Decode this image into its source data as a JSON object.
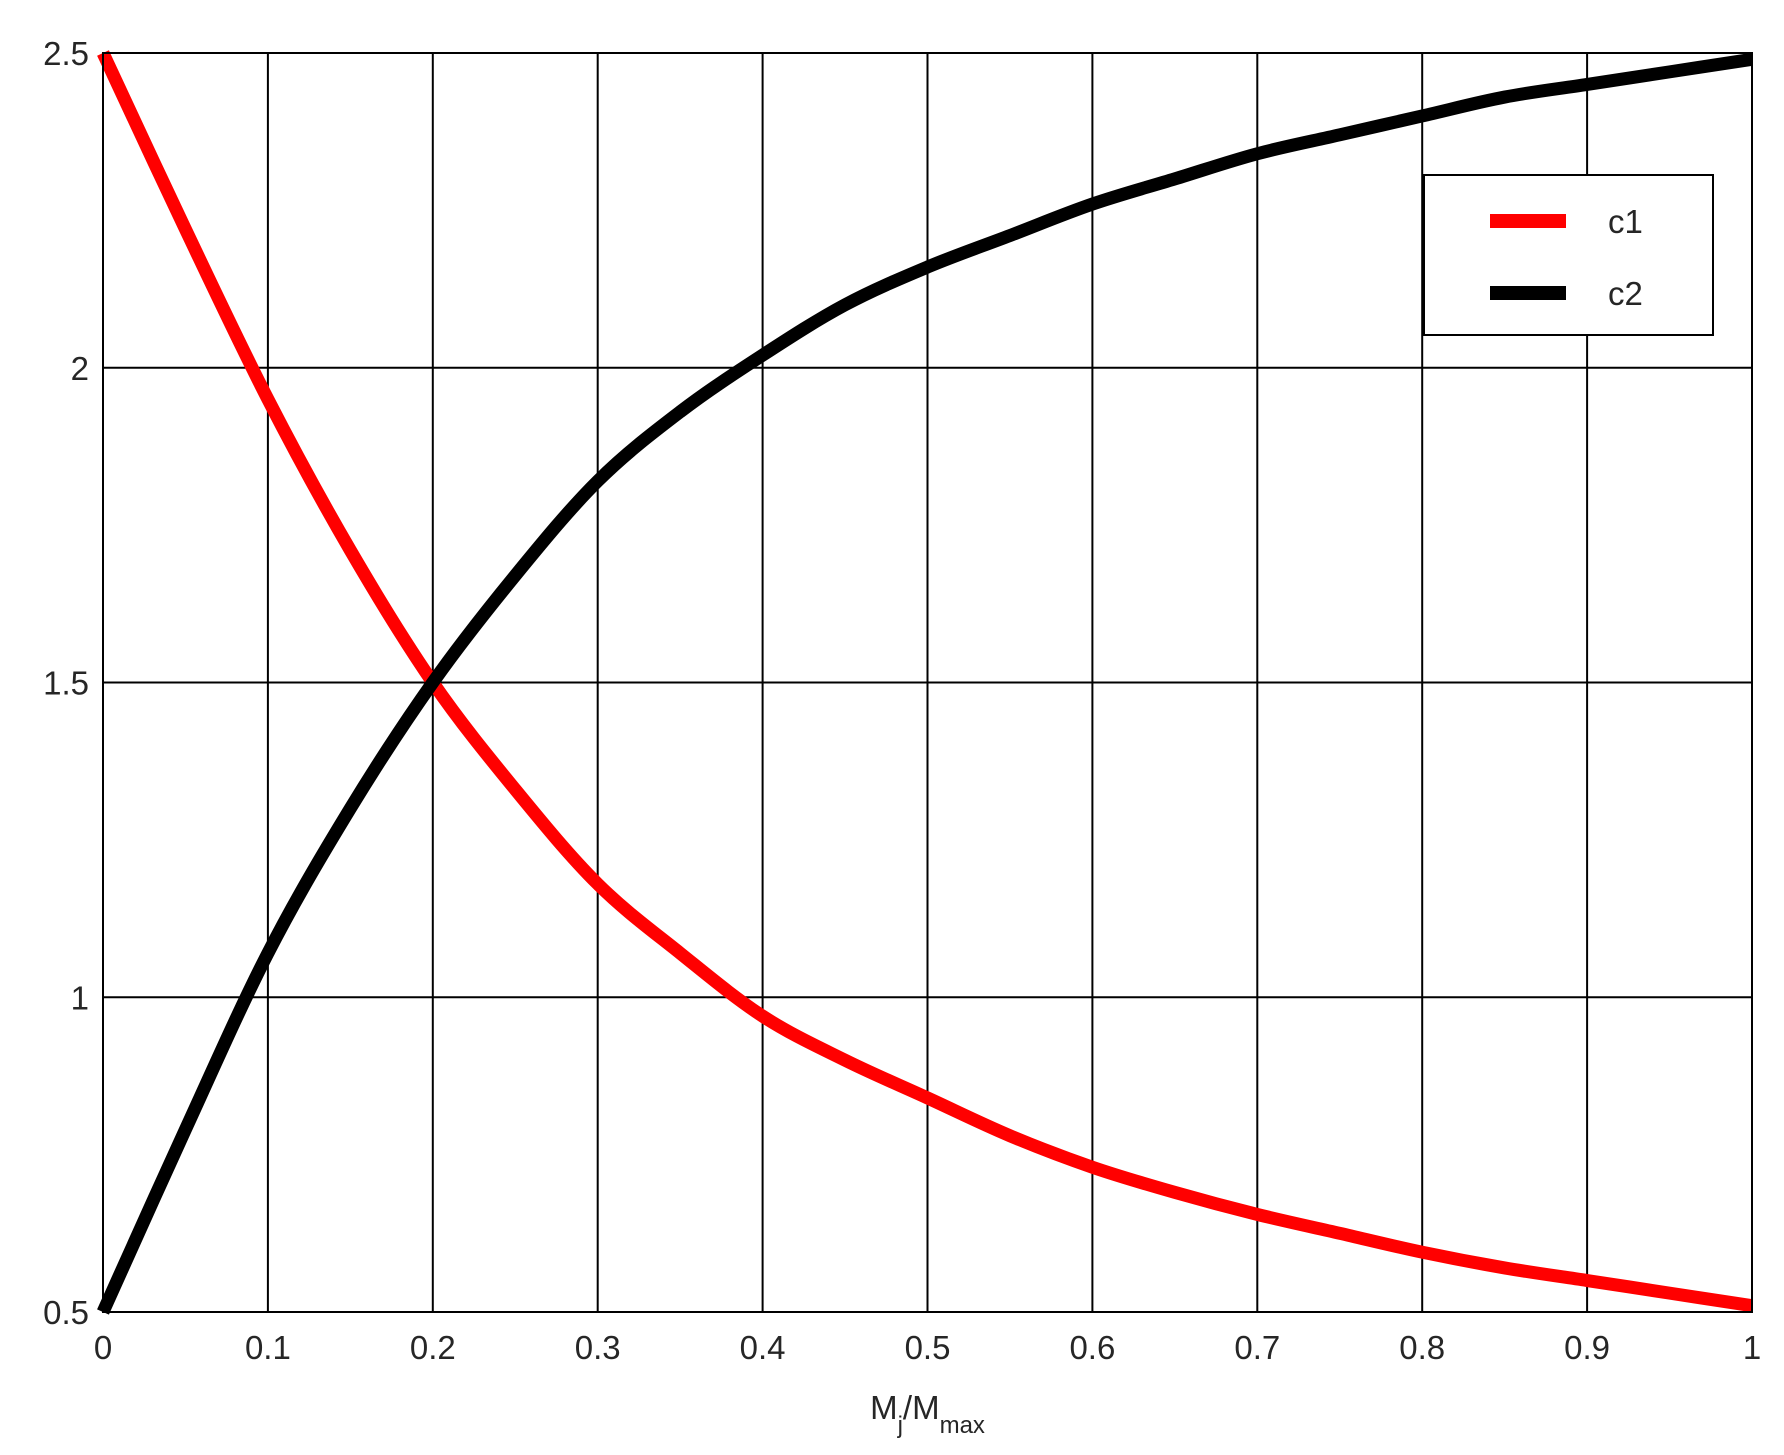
{
  "chart_data": {
    "type": "line",
    "xlabel": {
      "main": "M",
      "sub1": "j",
      "mid": "/M",
      "sub2": "max"
    },
    "ylabel": "",
    "xlim": [
      0,
      1
    ],
    "ylim": [
      0.5,
      2.5
    ],
    "grid": true,
    "legend_position": "top-right",
    "x_ticks": [
      0,
      0.1,
      0.2,
      0.3,
      0.4,
      0.5,
      0.6,
      0.7,
      0.8,
      0.9,
      1
    ],
    "x_tick_labels": [
      "0",
      "0.1",
      "0.2",
      "0.3",
      "0.4",
      "0.5",
      "0.6",
      "0.7",
      "0.8",
      "0.9",
      "1"
    ],
    "y_ticks": [
      0.5,
      1,
      1.5,
      2,
      2.5
    ],
    "y_tick_labels": [
      "0.5",
      "1",
      "1.5",
      "2",
      "2.5"
    ],
    "x": [
      0,
      0.05,
      0.1,
      0.15,
      0.2,
      0.25,
      0.3,
      0.35,
      0.4,
      0.45,
      0.5,
      0.55,
      0.6,
      0.65,
      0.7,
      0.75,
      0.8,
      0.85,
      0.9,
      0.95,
      1
    ],
    "series": [
      {
        "name": "c1",
        "color": "#ff0000",
        "values": [
          2.5,
          2.22,
          1.95,
          1.71,
          1.5,
          1.33,
          1.18,
          1.07,
          0.97,
          0.9,
          0.84,
          0.78,
          0.73,
          0.69,
          0.655,
          0.625,
          0.595,
          0.57,
          0.55,
          0.53,
          0.51
        ]
      },
      {
        "name": "c2",
        "color": "#000000",
        "values": [
          0.5,
          0.79,
          1.07,
          1.3,
          1.5,
          1.67,
          1.82,
          1.93,
          2.02,
          2.1,
          2.16,
          2.21,
          2.26,
          2.3,
          2.34,
          2.37,
          2.4,
          2.43,
          2.45,
          2.47,
          2.49
        ]
      }
    ]
  }
}
